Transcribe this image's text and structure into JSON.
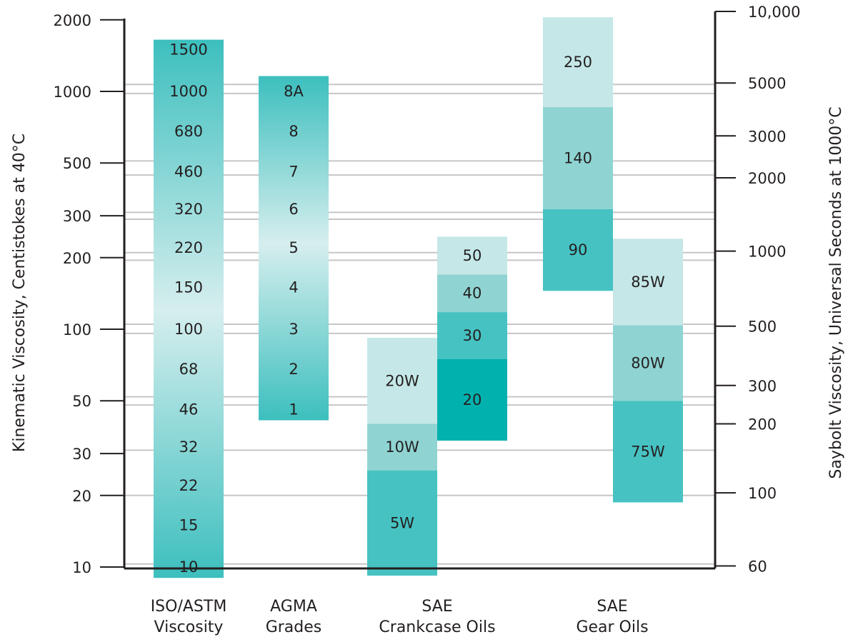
{
  "chart_data": {
    "type": "bar",
    "scale": "log",
    "ylabel": "Kinematic Viscosity, Centistokes at 40°C",
    "ylabel_right": "Saybolt Viscosity, Universal Seconds at 1000°C",
    "ylim": [
      9,
      2050
    ],
    "left_ticks": [
      {
        "value": 2000,
        "label": "2000"
      },
      {
        "value": 1000,
        "label": "1000"
      },
      {
        "value": 500,
        "label": "500"
      },
      {
        "value": 300,
        "label": "300"
      },
      {
        "value": 200,
        "label": "200"
      },
      {
        "value": 100,
        "label": "100"
      },
      {
        "value": 50,
        "label": "50"
      },
      {
        "value": 30,
        "label": "30"
      },
      {
        "value": 20,
        "label": "20"
      },
      {
        "value": 10,
        "label": "10"
      }
    ],
    "right_ticks": [
      {
        "value": 2170,
        "label": "10,000"
      },
      {
        "value": 1085,
        "label": "5000"
      },
      {
        "value": 650,
        "label": "3000"
      },
      {
        "value": 433,
        "label": "2000"
      },
      {
        "value": 213,
        "label": "1000"
      },
      {
        "value": 103,
        "label": "500"
      },
      {
        "value": 58,
        "label": "300"
      },
      {
        "value": 40,
        "label": "200"
      },
      {
        "value": 20.5,
        "label": "100"
      },
      {
        "value": 10.1,
        "label": "60"
      }
    ],
    "gridlines": [
      1070,
      980,
      510,
      445,
      310,
      290,
      210,
      195,
      105,
      96,
      52,
      48,
      31,
      20,
      10.3
    ],
    "categories": [
      {
        "label_lines": [
          "ISO/ASTM",
          "Viscosity"
        ]
      },
      {
        "label_lines": [
          "AGMA",
          "Grades"
        ]
      },
      {
        "label_lines": [
          "SAE",
          "Crankcase Oils"
        ]
      },
      {
        "label_lines": [
          "SAE",
          "Gear Oils"
        ]
      }
    ],
    "iso_grades": {
      "range": [
        9.0,
        1650
      ],
      "grades": [
        {
          "label": "1500",
          "value": 1500
        },
        {
          "label": "1000",
          "value": 1000
        },
        {
          "label": "680",
          "value": 680
        },
        {
          "label": "460",
          "value": 460
        },
        {
          "label": "320",
          "value": 320
        },
        {
          "label": "220",
          "value": 220
        },
        {
          "label": "150",
          "value": 150
        },
        {
          "label": "100",
          "value": 100
        },
        {
          "label": "68",
          "value": 68
        },
        {
          "label": "46",
          "value": 46
        },
        {
          "label": "32",
          "value": 32
        },
        {
          "label": "22",
          "value": 22
        },
        {
          "label": "15",
          "value": 15
        },
        {
          "label": "10",
          "value": 10
        }
      ]
    },
    "agma_grades": {
      "range": [
        41.4,
        1160
      ],
      "grades": [
        {
          "label": "8A",
          "value": 1000
        },
        {
          "label": "8",
          "value": 680
        },
        {
          "label": "7",
          "value": 460
        },
        {
          "label": "6",
          "value": 320
        },
        {
          "label": "5",
          "value": 220
        },
        {
          "label": "4",
          "value": 150
        },
        {
          "label": "3",
          "value": 100
        },
        {
          "label": "2",
          "value": 68
        },
        {
          "label": "1",
          "value": 46
        }
      ]
    },
    "sae_crankcase_winter": [
      {
        "label": "5W",
        "low": 9.2,
        "high": 25.5,
        "color": "#47c2c2"
      },
      {
        "label": "10W",
        "low": 25.5,
        "high": 40,
        "color": "#8fd4d2"
      },
      {
        "label": "20W",
        "low": 40,
        "high": 92,
        "color": "#c5e7e7"
      }
    ],
    "sae_crankcase_summer": [
      {
        "label": "20",
        "low": 34,
        "high": 75,
        "color": "#00b1ae"
      },
      {
        "label": "30",
        "low": 75,
        "high": 118,
        "color": "#47c2c2"
      },
      {
        "label": "40",
        "low": 118,
        "high": 170,
        "color": "#8fd4d2"
      },
      {
        "label": "50",
        "low": 170,
        "high": 245,
        "color": "#c5e7e7"
      }
    ],
    "sae_gear_high": [
      {
        "label": "90",
        "low": 145,
        "high": 320,
        "color": "#47c2c2"
      },
      {
        "label": "140",
        "low": 320,
        "high": 860,
        "color": "#8fd4d2"
      },
      {
        "label": "250",
        "low": 860,
        "high": 2050,
        "color": "#c5e7e7"
      }
    ],
    "sae_gear_low": [
      {
        "label": "75W",
        "low": 18.7,
        "high": 50,
        "color": "#47c2c2"
      },
      {
        "label": "80W",
        "low": 50,
        "high": 104,
        "color": "#8fd4d2"
      },
      {
        "label": "85W",
        "low": 104,
        "high": 240,
        "color": "#c5e7e7"
      }
    ],
    "gradient_colors": {
      "dark": "#3cbfbe",
      "light": "#d6eeee"
    },
    "colors": {
      "axis": "#231f20",
      "grid": "#c6c6c6",
      "text": "#231f20"
    }
  }
}
